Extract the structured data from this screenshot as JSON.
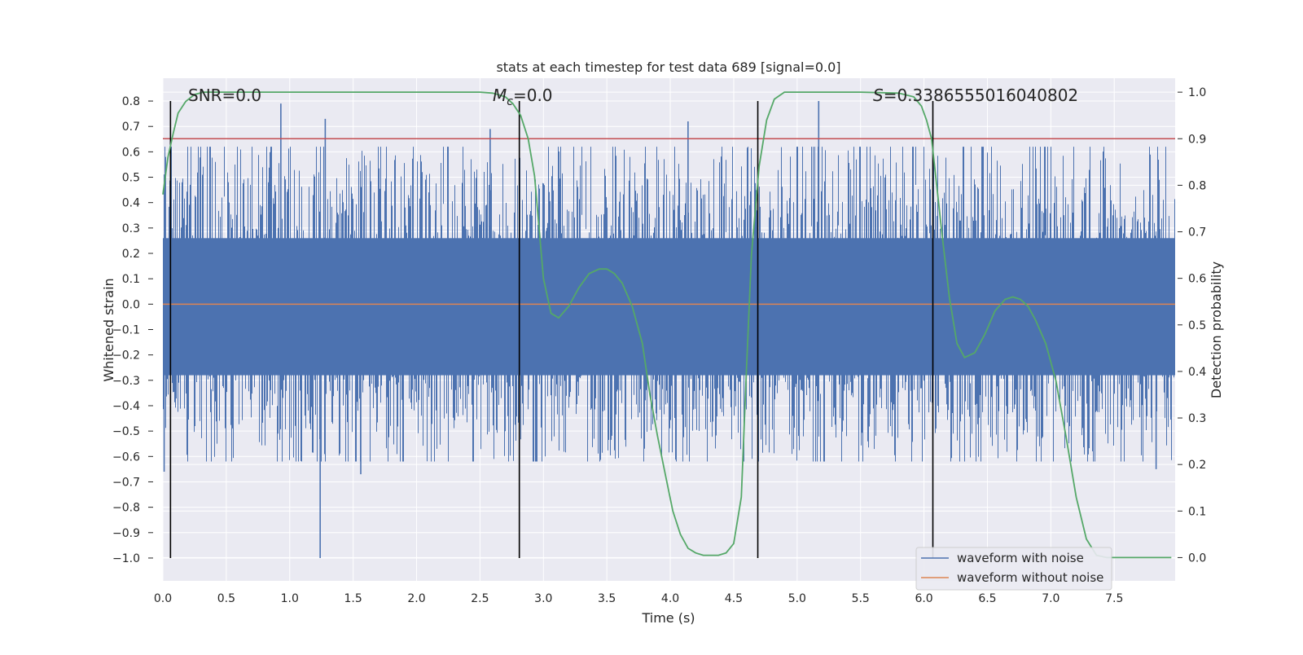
{
  "chart_data": {
    "type": "line",
    "title": "stats at each timestep for test data 689 [signal=0.0]",
    "xlabel": "Time (s)",
    "ylabel_left": "Whitened strain",
    "ylabel_right": "Detection probability",
    "xlim": [
      0.0,
      7.98
    ],
    "ylim_left": [
      -1.09,
      0.89
    ],
    "ylim_right": [
      -0.05,
      1.03
    ],
    "xticks": [
      "0.0",
      "0.5",
      "1.0",
      "1.5",
      "2.0",
      "2.5",
      "3.0",
      "3.5",
      "4.0",
      "4.5",
      "5.0",
      "5.5",
      "6.0",
      "6.5",
      "7.0",
      "7.5"
    ],
    "yticks_left": [
      "0.8",
      "0.7",
      "0.6",
      "0.5",
      "0.4",
      "0.3",
      "0.2",
      "0.1",
      "0.0",
      "−0.1",
      "−0.2",
      "−0.3",
      "−0.4",
      "−0.5",
      "−0.6",
      "−0.7",
      "−0.8",
      "−0.9",
      "−1.0"
    ],
    "yticks_right": [
      "1.0",
      "0.9",
      "0.8",
      "0.7",
      "0.6",
      "0.5",
      "0.4",
      "0.3",
      "0.2",
      "0.1",
      "0.0"
    ],
    "grid": true,
    "legend_position": "lower-right",
    "annotations": {
      "snr": "SNR=0.0",
      "mc_symbol": "M",
      "mc_sub": "c",
      "mc_value": "=0.0",
      "s_symbol": "S",
      "s_value": "=0.3386555016040802"
    },
    "threshold": {
      "value": 0.9,
      "axis": "right",
      "color": "#c44e52"
    },
    "vertical_lines": [
      0.06,
      2.81,
      4.69,
      6.07
    ],
    "series": [
      {
        "name": "waveform with noise",
        "axis": "left",
        "color": "#4c72b0",
        "kind": "noise",
        "core_band": [
          -0.28,
          0.26
        ],
        "notable_peaks": [
          {
            "x": 0.93,
            "y": 0.79
          },
          {
            "x": 1.28,
            "y": 0.73
          },
          {
            "x": 5.17,
            "y": 0.8
          },
          {
            "x": 1.24,
            "y": -1.0
          },
          {
            "x": 0.02,
            "y": 0.58
          },
          {
            "x": 0.01,
            "y": -0.66
          },
          {
            "x": 7.83,
            "y": -0.65
          },
          {
            "x": 2.58,
            "y": 0.69
          },
          {
            "x": 4.14,
            "y": 0.72
          },
          {
            "x": 1.56,
            "y": -0.67
          }
        ]
      },
      {
        "name": "waveform without noise",
        "axis": "left",
        "color": "#dd8452",
        "constant": 0.0
      },
      {
        "name": "Detection probability",
        "axis": "right",
        "color": "#55a868",
        "x": [
          0.0,
          0.04,
          0.08,
          0.12,
          0.18,
          0.25,
          0.32,
          0.4,
          0.5,
          1.0,
          1.5,
          2.0,
          2.5,
          2.6,
          2.7,
          2.76,
          2.82,
          2.88,
          2.93,
          3.0,
          3.06,
          3.12,
          3.2,
          3.28,
          3.36,
          3.44,
          3.5,
          3.56,
          3.62,
          3.7,
          3.78,
          3.84,
          3.9,
          3.96,
          4.02,
          4.08,
          4.14,
          4.2,
          4.26,
          4.32,
          4.38,
          4.44,
          4.5,
          4.56,
          4.6,
          4.64,
          4.7,
          4.76,
          4.82,
          4.9,
          5.0,
          5.5,
          5.8,
          5.92,
          5.98,
          6.02,
          6.06,
          6.1,
          6.14,
          6.2,
          6.26,
          6.32,
          6.4,
          6.48,
          6.56,
          6.64,
          6.7,
          6.76,
          6.82,
          6.88,
          6.96,
          7.04,
          7.12,
          7.2,
          7.28,
          7.36,
          7.44,
          7.6,
          7.8,
          7.95
        ],
        "y": [
          0.78,
          0.86,
          0.91,
          0.955,
          0.98,
          0.995,
          1.0,
          1.0,
          1.0,
          1.0,
          1.0,
          1.0,
          1.0,
          0.998,
          0.99,
          0.975,
          0.95,
          0.9,
          0.82,
          0.6,
          0.525,
          0.515,
          0.54,
          0.58,
          0.61,
          0.62,
          0.62,
          0.61,
          0.59,
          0.54,
          0.46,
          0.35,
          0.26,
          0.18,
          0.1,
          0.05,
          0.02,
          0.01,
          0.005,
          0.005,
          0.005,
          0.01,
          0.03,
          0.13,
          0.4,
          0.65,
          0.84,
          0.94,
          0.985,
          1.0,
          1.0,
          1.0,
          0.998,
          0.99,
          0.97,
          0.94,
          0.9,
          0.8,
          0.7,
          0.56,
          0.46,
          0.43,
          0.44,
          0.48,
          0.53,
          0.555,
          0.56,
          0.555,
          0.54,
          0.51,
          0.46,
          0.38,
          0.26,
          0.13,
          0.04,
          0.005,
          0.0,
          0.0,
          0.0,
          0.0
        ]
      }
    ]
  }
}
